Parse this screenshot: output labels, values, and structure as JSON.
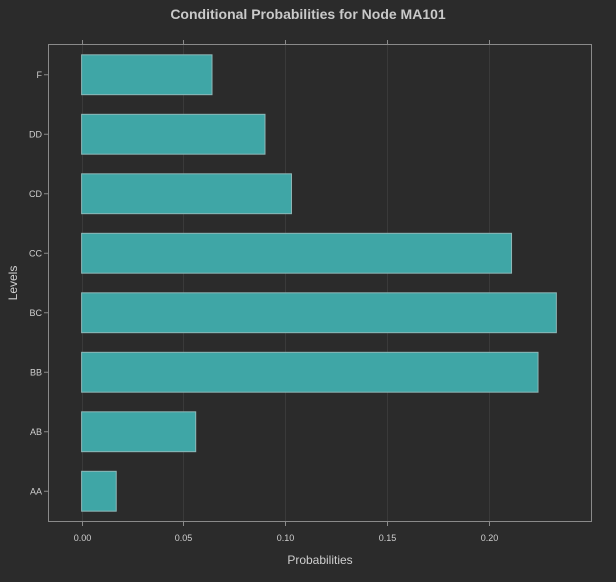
{
  "chart_data": {
    "type": "bar",
    "orientation": "horizontal",
    "title": "Conditional Probabilities for Node MA101",
    "xlabel": "Probabilities",
    "ylabel": "Levels",
    "categories": [
      "AA",
      "AB",
      "BB",
      "BC",
      "CC",
      "CD",
      "DD",
      "F"
    ],
    "values": [
      0.017,
      0.056,
      0.224,
      0.233,
      0.211,
      0.103,
      0.09,
      0.064
    ],
    "xlim": [
      -0.016,
      0.25
    ],
    "xticks": [
      0.0,
      0.05,
      0.1,
      0.15,
      0.2
    ],
    "xtick_labels": [
      "0.00",
      "0.05",
      "0.10",
      "0.15",
      "0.20"
    ],
    "grid": true,
    "legend": "none"
  },
  "colors": {
    "background": "#2b2b2b",
    "bar_fill": "#3fa6a6",
    "bar_stroke": "#8fb8b8",
    "grid": "#3a3a3a",
    "frame": "#8a8a8a",
    "text": "#cfcfcf",
    "title": "#c9c9c9"
  }
}
